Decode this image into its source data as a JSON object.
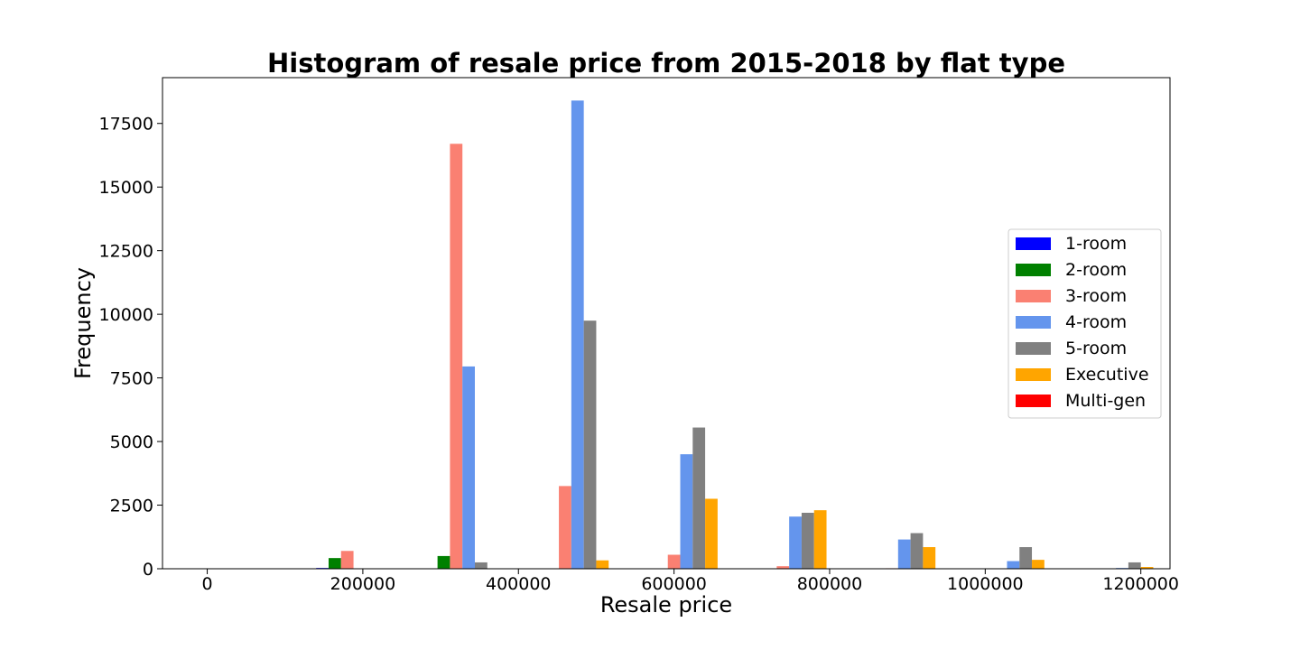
{
  "chart_data": {
    "type": "bar",
    "title": "Histogram of resale price from 2015-2018 by flat type",
    "xlabel": "Resale price",
    "ylabel": "Frequency",
    "xlim": [
      -57500,
      1237500
    ],
    "ylim": [
      0,
      19300
    ],
    "xticks": [
      "0",
      "200000",
      "400000",
      "600000",
      "800000",
      "1000000",
      "1200000"
    ],
    "yticks": [
      "0",
      "2500",
      "5000",
      "7500",
      "10000",
      "12500",
      "15000",
      "17500"
    ],
    "bins": [
      140000,
      280000,
      420000,
      560000,
      700000,
      840000,
      980000,
      1120000
    ],
    "bin_width": 140000,
    "series": [
      {
        "name": "1-room",
        "color": "#0000ff",
        "values": [
          30,
          0,
          0,
          0,
          0,
          0,
          0,
          0
        ]
      },
      {
        "name": "2-room",
        "color": "#008000",
        "values": [
          420,
          500,
          0,
          0,
          0,
          0,
          0,
          0
        ]
      },
      {
        "name": "3-room",
        "color": "#fa8072",
        "values": [
          700,
          16700,
          3250,
          550,
          100,
          20,
          0,
          0
        ]
      },
      {
        "name": "4-room",
        "color": "#6495ed",
        "values": [
          0,
          7950,
          18400,
          4500,
          2050,
          1150,
          300,
          30
        ]
      },
      {
        "name": "5-room",
        "color": "#808080",
        "values": [
          0,
          250,
          9750,
          5550,
          2200,
          1400,
          850,
          250
        ]
      },
      {
        "name": "Executive",
        "color": "#ffa500",
        "values": [
          0,
          0,
          330,
          2750,
          2300,
          850,
          350,
          70
        ]
      },
      {
        "name": "Multi-gen",
        "color": "#ff0000",
        "values": [
          0,
          0,
          0,
          0,
          0,
          0,
          0,
          0
        ]
      }
    ],
    "legend_position": "center-right",
    "grid": false
  }
}
